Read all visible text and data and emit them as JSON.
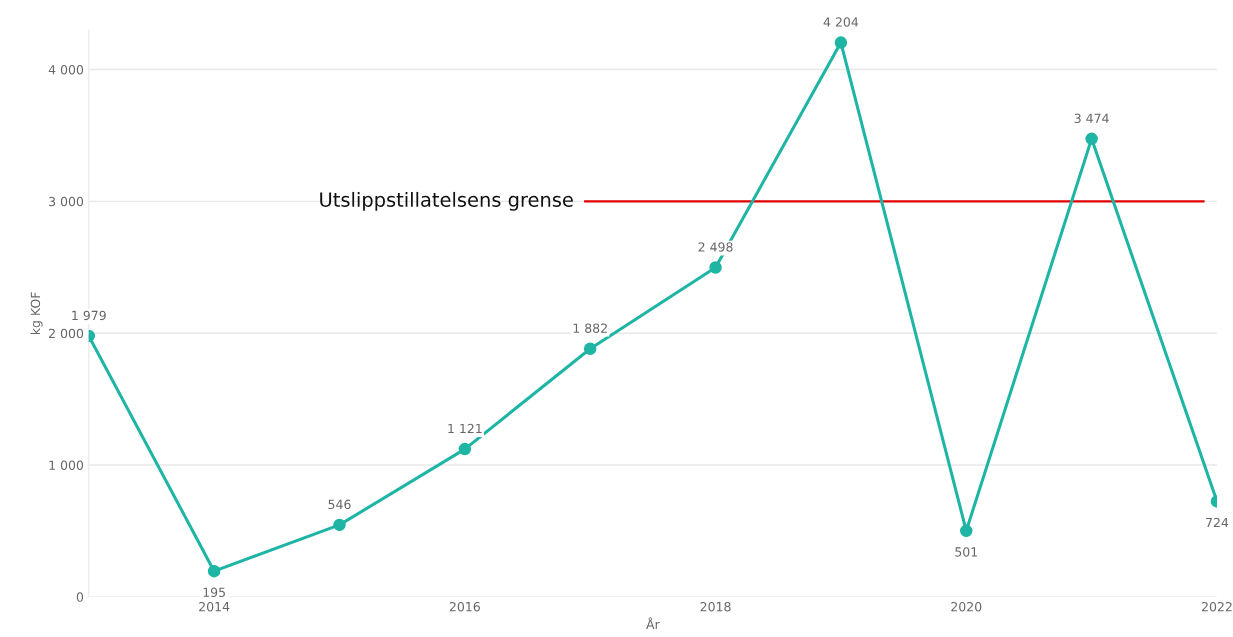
{
  "chart_data": {
    "type": "line",
    "xlabel": "År",
    "ylabel": "kg KOF",
    "x": [
      2013,
      2014,
      2015,
      2016,
      2017,
      2018,
      2019,
      2020,
      2021,
      2022
    ],
    "series": [
      {
        "color": "#1fb5a5",
        "values": [
          1979,
          195,
          546,
          1121,
          1882,
          2498,
          4204,
          501,
          3474,
          724
        ],
        "value_labels": [
          "1 979",
          "195",
          "546",
          "1 121",
          "1 882",
          "2 498",
          "4 204",
          "501",
          "3 474",
          "724"
        ]
      }
    ],
    "xlim": [
      2013,
      2022
    ],
    "xticks": [
      2014,
      2016,
      2018,
      2020,
      2022
    ],
    "ylim": [
      0,
      4300
    ],
    "yticks": [
      {
        "value": 0,
        "label": "0"
      },
      {
        "value": 1000,
        "label": "1 000"
      },
      {
        "value": 2000,
        "label": "2 000"
      },
      {
        "value": 3000,
        "label": "3 000"
      },
      {
        "value": 4000,
        "label": "4 000"
      }
    ],
    "grid": "y",
    "marker": "circle",
    "line_style": "solid",
    "ref_lines": [
      {
        "axis": "y",
        "value": 3000,
        "label": "Utslippstillatelsens grense",
        "color": "#e00000"
      }
    ]
  }
}
